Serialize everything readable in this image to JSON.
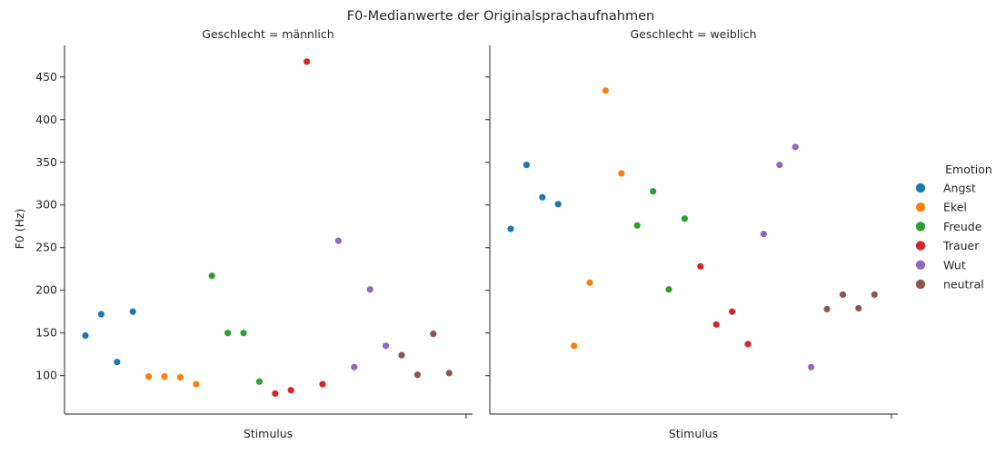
{
  "chart_data": {
    "type": "scatter",
    "title": "F0-Medianwerte der Originalsprachaufnahmen",
    "ylabel": "F0 (Hz)",
    "xlabel": "Stimulus",
    "ylim": [
      55,
      487
    ],
    "yticks": [
      100,
      150,
      200,
      250,
      300,
      350,
      400,
      450
    ],
    "grid": false,
    "legend": {
      "title": "Emotion",
      "placement": "right",
      "entries": [
        {
          "name": "Angst",
          "color": "#1f77b4"
        },
        {
          "name": "Ekel",
          "color": "#ff7f0e"
        },
        {
          "name": "Freude",
          "color": "#2ca02c"
        },
        {
          "name": "Trauer",
          "color": "#d62728"
        },
        {
          "name": "Wut",
          "color": "#9467bd"
        },
        {
          "name": "neutral",
          "color": "#8c564b"
        }
      ]
    },
    "panels": [
      {
        "title": "Geschlecht = männlich",
        "points": [
          {
            "x": 1,
            "y": 147,
            "emotion": "Angst"
          },
          {
            "x": 2,
            "y": 172,
            "emotion": "Angst"
          },
          {
            "x": 3,
            "y": 116,
            "emotion": "Angst"
          },
          {
            "x": 4,
            "y": 175,
            "emotion": "Angst"
          },
          {
            "x": 5,
            "y": 99,
            "emotion": "Ekel"
          },
          {
            "x": 6,
            "y": 99,
            "emotion": "Ekel"
          },
          {
            "x": 7,
            "y": 98,
            "emotion": "Ekel"
          },
          {
            "x": 8,
            "y": 90,
            "emotion": "Ekel"
          },
          {
            "x": 9,
            "y": 217,
            "emotion": "Freude"
          },
          {
            "x": 10,
            "y": 150,
            "emotion": "Freude"
          },
          {
            "x": 11,
            "y": 150,
            "emotion": "Freude"
          },
          {
            "x": 12,
            "y": 93,
            "emotion": "Freude"
          },
          {
            "x": 13,
            "y": 79,
            "emotion": "Trauer"
          },
          {
            "x": 14,
            "y": 83,
            "emotion": "Trauer"
          },
          {
            "x": 15,
            "y": 468,
            "emotion": "Trauer"
          },
          {
            "x": 16,
            "y": 90,
            "emotion": "Trauer"
          },
          {
            "x": 17,
            "y": 258,
            "emotion": "Wut"
          },
          {
            "x": 18,
            "y": 110,
            "emotion": "Wut"
          },
          {
            "x": 19,
            "y": 201,
            "emotion": "Wut"
          },
          {
            "x": 20,
            "y": 135,
            "emotion": "Wut"
          },
          {
            "x": 21,
            "y": 124,
            "emotion": "neutral"
          },
          {
            "x": 22,
            "y": 101,
            "emotion": "neutral"
          },
          {
            "x": 23,
            "y": 149,
            "emotion": "neutral"
          },
          {
            "x": 24,
            "y": 103,
            "emotion": "neutral"
          }
        ]
      },
      {
        "title": "Geschlecht = weiblich",
        "points": [
          {
            "x": 1,
            "y": 272,
            "emotion": "Angst"
          },
          {
            "x": 2,
            "y": 347,
            "emotion": "Angst"
          },
          {
            "x": 3,
            "y": 309,
            "emotion": "Angst"
          },
          {
            "x": 4,
            "y": 301,
            "emotion": "Angst"
          },
          {
            "x": 5,
            "y": 135,
            "emotion": "Ekel"
          },
          {
            "x": 6,
            "y": 209,
            "emotion": "Ekel"
          },
          {
            "x": 7,
            "y": 434,
            "emotion": "Ekel"
          },
          {
            "x": 8,
            "y": 337,
            "emotion": "Ekel"
          },
          {
            "x": 9,
            "y": 276,
            "emotion": "Freude"
          },
          {
            "x": 10,
            "y": 316,
            "emotion": "Freude"
          },
          {
            "x": 11,
            "y": 201,
            "emotion": "Freude"
          },
          {
            "x": 12,
            "y": 284,
            "emotion": "Freude"
          },
          {
            "x": 13,
            "y": 228,
            "emotion": "Trauer"
          },
          {
            "x": 14,
            "y": 160,
            "emotion": "Trauer"
          },
          {
            "x": 15,
            "y": 175,
            "emotion": "Trauer"
          },
          {
            "x": 16,
            "y": 137,
            "emotion": "Trauer"
          },
          {
            "x": 17,
            "y": 266,
            "emotion": "Wut"
          },
          {
            "x": 18,
            "y": 347,
            "emotion": "Wut"
          },
          {
            "x": 19,
            "y": 368,
            "emotion": "Wut"
          },
          {
            "x": 20,
            "y": 110,
            "emotion": "Wut"
          },
          {
            "x": 21,
            "y": 178,
            "emotion": "neutral"
          },
          {
            "x": 22,
            "y": 195,
            "emotion": "neutral"
          },
          {
            "x": 23,
            "y": 179,
            "emotion": "neutral"
          },
          {
            "x": 24,
            "y": 195,
            "emotion": "neutral"
          }
        ]
      }
    ]
  }
}
